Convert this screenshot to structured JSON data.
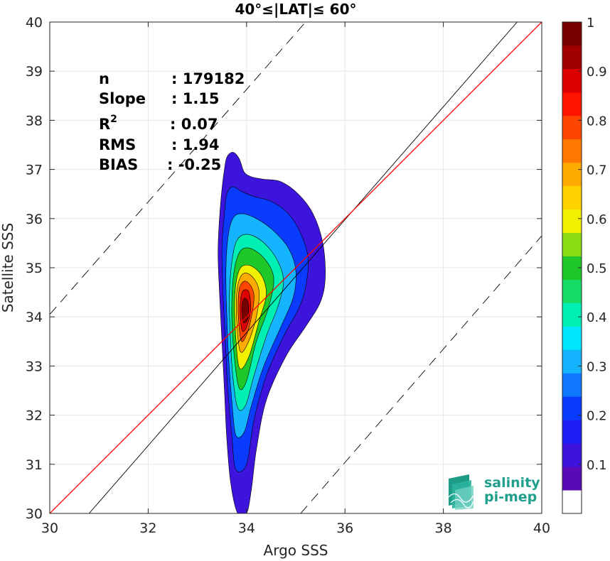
{
  "chart_data": {
    "type": "heatmap",
    "title": "40°≤|LAT|≤ 60°",
    "xlabel": "Argo SSS",
    "ylabel": "Satellite SSS",
    "xlim": [
      30,
      40
    ],
    "ylim": [
      30,
      40
    ],
    "xticks": [
      30,
      32,
      34,
      36,
      38,
      40
    ],
    "yticks": [
      30,
      31,
      32,
      33,
      34,
      35,
      36,
      37,
      38,
      39,
      40
    ],
    "grid": true,
    "stats": [
      {
        "label": "n",
        "value": ": 179182"
      },
      {
        "label": "Slope",
        "value": ": 1.15"
      },
      {
        "label": "R",
        "sup": "2",
        "value": ": 0.07"
      },
      {
        "label": "RMS",
        "value": ": 1.94"
      },
      {
        "label": "BIAS",
        "value": ": -0.25"
      }
    ],
    "lines": [
      {
        "name": "1:1",
        "color": "#000000",
        "style": "solid",
        "points": [
          [
            30.8,
            30
          ],
          [
            39.5,
            40
          ]
        ]
      },
      {
        "name": "+2 offset",
        "color": "#000000",
        "style": "dashed",
        "points": [
          [
            30,
            34.05
          ],
          [
            35.2,
            40
          ]
        ]
      },
      {
        "name": "-2 offset",
        "color": "#000000",
        "style": "dashed",
        "points": [
          [
            35.1,
            30
          ],
          [
            40,
            35.65
          ]
        ]
      },
      {
        "name": "regression",
        "color": "#ff0000",
        "style": "solid",
        "points": [
          [
            30,
            30
          ],
          [
            40,
            40
          ]
        ]
      }
    ],
    "contour_levels": [
      0.05,
      0.1,
      0.15,
      0.2,
      0.25,
      0.3,
      0.35,
      0.4,
      0.45,
      0.5,
      0.55,
      0.6,
      0.65,
      0.7,
      0.75,
      0.8,
      0.85,
      0.9,
      0.95
    ],
    "contours": [
      {
        "level": 0.05,
        "pts": [
          [
            33.82,
            30.0
          ],
          [
            33.68,
            30.6
          ],
          [
            33.6,
            31.5
          ],
          [
            33.55,
            32.5
          ],
          [
            33.5,
            33.5
          ],
          [
            33.45,
            34.5
          ],
          [
            33.42,
            35.3
          ],
          [
            33.45,
            36.0
          ],
          [
            33.5,
            36.6
          ],
          [
            33.55,
            37.0
          ],
          [
            33.6,
            37.25
          ],
          [
            33.72,
            37.35
          ],
          [
            33.85,
            37.22
          ],
          [
            33.95,
            36.95
          ],
          [
            34.1,
            36.85
          ],
          [
            34.35,
            36.8
          ],
          [
            34.7,
            36.75
          ],
          [
            35.05,
            36.5
          ],
          [
            35.35,
            36.1
          ],
          [
            35.55,
            35.5
          ],
          [
            35.6,
            34.8
          ],
          [
            35.5,
            34.3
          ],
          [
            35.2,
            33.8
          ],
          [
            34.8,
            33.2
          ],
          [
            34.4,
            32.3
          ],
          [
            34.2,
            31.3
          ],
          [
            34.1,
            30.5
          ],
          [
            34.0,
            30.0
          ]
        ]
      },
      {
        "level": 0.15,
        "pts": [
          [
            33.78,
            30.9
          ],
          [
            33.7,
            31.6
          ],
          [
            33.62,
            32.5
          ],
          [
            33.57,
            33.5
          ],
          [
            33.52,
            34.5
          ],
          [
            33.5,
            35.4
          ],
          [
            33.55,
            36.1
          ],
          [
            33.6,
            36.5
          ],
          [
            33.72,
            36.65
          ],
          [
            33.9,
            36.55
          ],
          [
            34.15,
            36.45
          ],
          [
            34.5,
            36.35
          ],
          [
            34.85,
            36.1
          ],
          [
            35.1,
            35.7
          ],
          [
            35.25,
            35.2
          ],
          [
            35.2,
            34.6
          ],
          [
            35.05,
            34.15
          ],
          [
            34.75,
            33.6
          ],
          [
            34.4,
            32.8
          ],
          [
            34.15,
            31.9
          ],
          [
            34.0,
            31.0
          ]
        ]
      },
      {
        "level": 0.25,
        "pts": [
          [
            33.78,
            31.6
          ],
          [
            33.7,
            32.3
          ],
          [
            33.64,
            33.1
          ],
          [
            33.6,
            34.0
          ],
          [
            33.58,
            34.9
          ],
          [
            33.62,
            35.6
          ],
          [
            33.72,
            36.0
          ],
          [
            33.9,
            36.1
          ],
          [
            34.2,
            36.0
          ],
          [
            34.55,
            35.75
          ],
          [
            34.85,
            35.4
          ],
          [
            35.0,
            34.95
          ],
          [
            34.95,
            34.4
          ],
          [
            34.7,
            33.8
          ],
          [
            34.35,
            33.0
          ],
          [
            34.1,
            32.2
          ],
          [
            33.95,
            31.65
          ]
        ]
      },
      {
        "level": 0.35,
        "pts": [
          [
            33.82,
            32.15
          ],
          [
            33.72,
            32.8
          ],
          [
            33.67,
            33.6
          ],
          [
            33.65,
            34.4
          ],
          [
            33.7,
            35.1
          ],
          [
            33.8,
            35.55
          ],
          [
            34.0,
            35.68
          ],
          [
            34.3,
            35.55
          ],
          [
            34.6,
            35.2
          ],
          [
            34.75,
            34.75
          ],
          [
            34.65,
            34.25
          ],
          [
            34.4,
            33.6
          ],
          [
            34.15,
            32.8
          ],
          [
            33.98,
            32.2
          ]
        ]
      },
      {
        "level": 0.45,
        "pts": [
          [
            33.85,
            32.55
          ],
          [
            33.75,
            33.2
          ],
          [
            33.7,
            34.0
          ],
          [
            33.73,
            34.8
          ],
          [
            33.85,
            35.3
          ],
          [
            34.05,
            35.4
          ],
          [
            34.35,
            35.2
          ],
          [
            34.55,
            34.8
          ],
          [
            34.45,
            34.2
          ],
          [
            34.2,
            33.5
          ],
          [
            34.0,
            32.7
          ]
        ]
      },
      {
        "level": 0.55,
        "pts": [
          [
            33.86,
            32.95
          ],
          [
            33.78,
            33.6
          ],
          [
            33.76,
            34.4
          ],
          [
            33.85,
            34.95
          ],
          [
            34.05,
            35.05
          ],
          [
            34.3,
            34.85
          ],
          [
            34.4,
            34.45
          ],
          [
            34.25,
            33.9
          ],
          [
            34.05,
            33.2
          ]
        ]
      },
      {
        "level": 0.65,
        "pts": [
          [
            33.87,
            33.3
          ],
          [
            33.8,
            33.9
          ],
          [
            33.8,
            34.5
          ],
          [
            33.9,
            34.85
          ],
          [
            34.08,
            34.85
          ],
          [
            34.25,
            34.55
          ],
          [
            34.2,
            34.0
          ],
          [
            34.02,
            33.45
          ]
        ]
      },
      {
        "level": 0.75,
        "pts": [
          [
            33.88,
            33.55
          ],
          [
            33.83,
            34.1
          ],
          [
            33.86,
            34.6
          ],
          [
            34.0,
            34.72
          ],
          [
            34.15,
            34.45
          ],
          [
            34.08,
            33.9
          ],
          [
            33.96,
            33.55
          ]
        ]
      },
      {
        "level": 0.85,
        "pts": [
          [
            33.9,
            33.75
          ],
          [
            33.87,
            34.2
          ],
          [
            33.92,
            34.52
          ],
          [
            34.05,
            34.5
          ],
          [
            34.08,
            34.1
          ],
          [
            33.98,
            33.75
          ]
        ]
      },
      {
        "level": 0.95,
        "pts": [
          [
            33.93,
            33.9
          ],
          [
            33.91,
            34.25
          ],
          [
            33.97,
            34.38
          ],
          [
            34.04,
            34.25
          ],
          [
            34.02,
            33.95
          ]
        ]
      }
    ],
    "colorbar": {
      "min": 0,
      "max": 1,
      "tick_labels": [
        "0.1",
        "0.2",
        "0.3",
        "0.4",
        "0.5",
        "0.6",
        "0.7",
        "0.8",
        "0.9",
        "1"
      ],
      "tick_values": [
        0.1,
        0.2,
        0.3,
        0.4,
        0.5,
        0.6,
        0.7,
        0.8,
        0.9,
        1.0
      ],
      "colors": [
        "#ffffff",
        "#5a0ab4",
        "#3c14dc",
        "#1e1ef5",
        "#0a3cff",
        "#0f78ff",
        "#14b4ff",
        "#00e6ff",
        "#00f0b4",
        "#14dc64",
        "#1ec828",
        "#8cdc14",
        "#f0f000",
        "#ffd200",
        "#ffaa00",
        "#ff7800",
        "#ff4600",
        "#ff1400",
        "#dc0000",
        "#a00000",
        "#780000"
      ]
    }
  },
  "logo": {
    "line1": "salinity",
    "line2": "pi-mep"
  }
}
